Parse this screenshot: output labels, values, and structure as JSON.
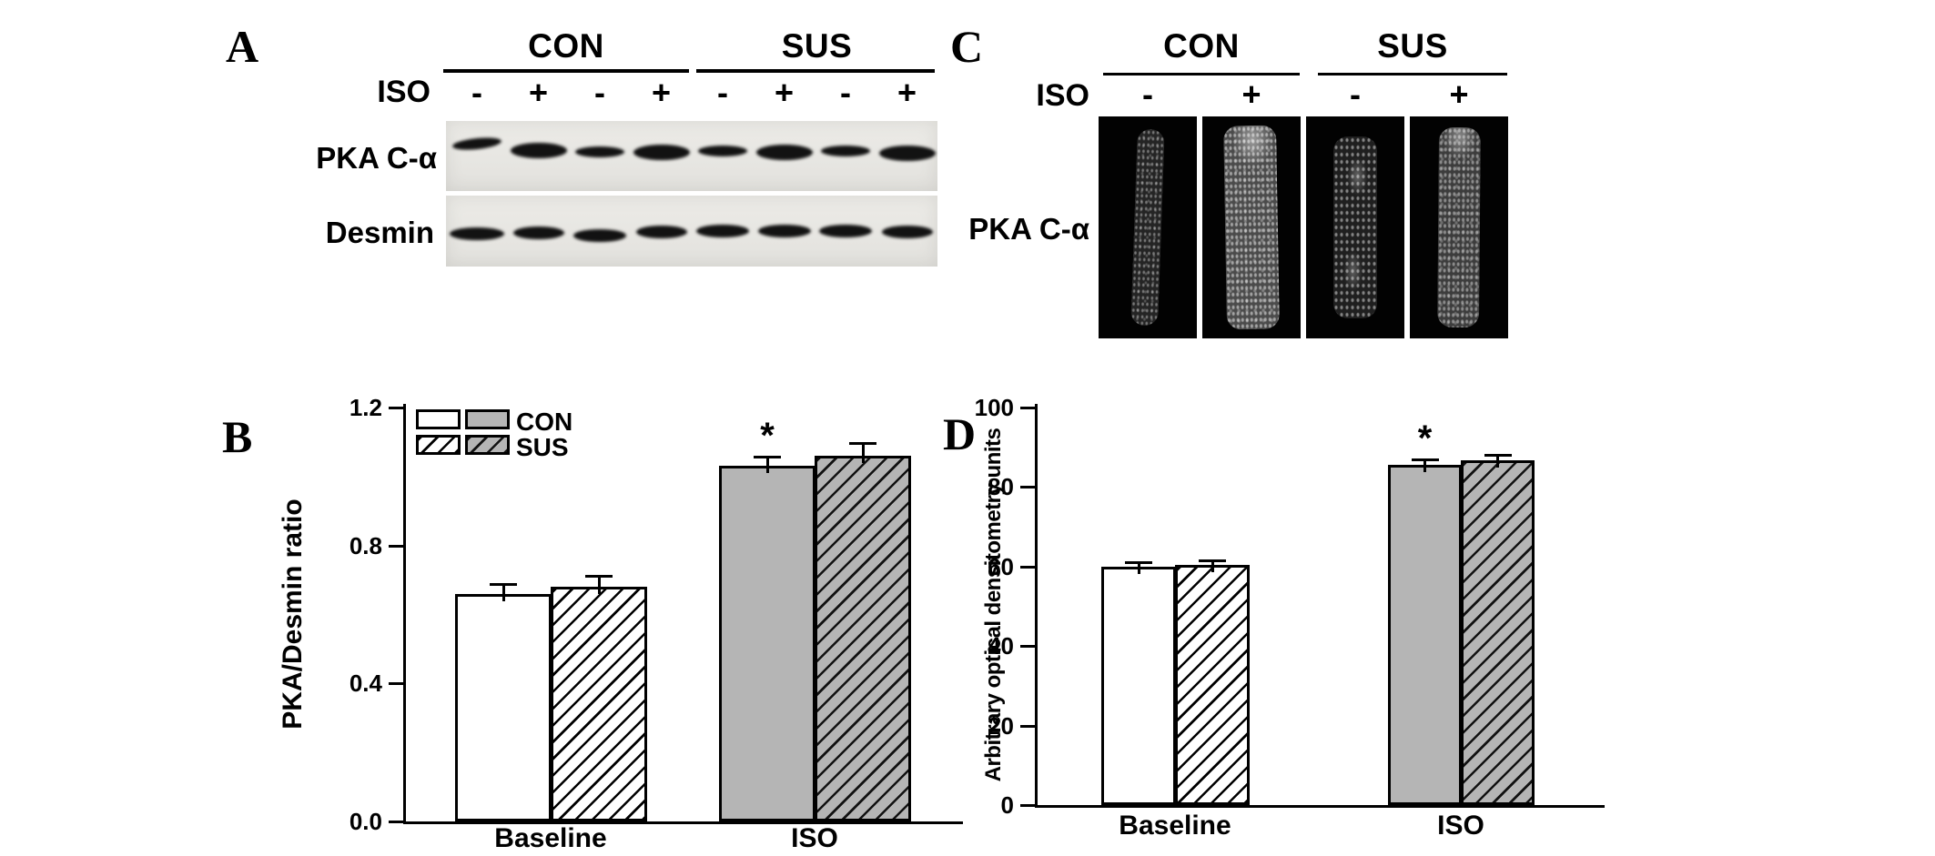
{
  "panel_a": {
    "label": "A",
    "groups": [
      "CON",
      "SUS"
    ],
    "iso_label": "ISO",
    "lanes": [
      "-",
      "+",
      "-",
      "+",
      "-",
      "+",
      "-",
      "+"
    ],
    "rows": [
      {
        "label": "PKA C-α"
      },
      {
        "label": "Desmin"
      }
    ]
  },
  "panel_b": {
    "label": "B"
  },
  "panel_c": {
    "label": "C",
    "groups": [
      "CON",
      "SUS"
    ],
    "iso_label": "ISO",
    "lanes": [
      "-",
      "+",
      "-",
      "+"
    ],
    "row_label": "PKA C-α"
  },
  "panel_d": {
    "label": "D"
  },
  "legend": {
    "con": "CON",
    "sus": "SUS"
  },
  "colors": {
    "gray_fill": "#b5b5b5",
    "blot_bg": "#e8e7e3",
    "band": "#121212",
    "accent": "#000000"
  },
  "chart_data": [
    {
      "id": "B",
      "type": "bar",
      "categories": [
        "Baseline",
        "ISO"
      ],
      "series": [
        {
          "name": "CON",
          "values": [
            0.66,
            1.03
          ],
          "errors": [
            0.03,
            0.03
          ]
        },
        {
          "name": "SUS",
          "values": [
            0.68,
            1.06
          ],
          "errors": [
            0.035,
            0.04
          ]
        }
      ],
      "title": "",
      "xlabel": "",
      "ylabel": "PKA/Desmin ratio",
      "ylim": [
        0,
        1.2
      ],
      "yticks": [
        0,
        0.4,
        0.8,
        1.2
      ],
      "ytick_labels": [
        "0.0",
        "0.4",
        "0.8",
        "1.2"
      ],
      "grid": false,
      "legend_position": "top-left",
      "sig_marker": {
        "text": "*",
        "category": "ISO",
        "series": "CON"
      }
    },
    {
      "id": "D",
      "type": "bar",
      "categories": [
        "Baseline",
        "ISO"
      ],
      "series": [
        {
          "name": "CON",
          "values": [
            60,
            85.5
          ],
          "errors": [
            1.4,
            1.7
          ]
        },
        {
          "name": "SUS",
          "values": [
            60.3,
            86.7
          ],
          "errors": [
            1.5,
            1.6
          ]
        }
      ],
      "title": "",
      "xlabel": "",
      "ylabel": "Arbitrary optical densitometry units",
      "ylim": [
        0,
        100
      ],
      "yticks": [
        0,
        20,
        40,
        60,
        80,
        100
      ],
      "ytick_labels": [
        "0",
        "20",
        "40",
        "60",
        "80",
        "100"
      ],
      "grid": false,
      "legend_position": "none",
      "sig_marker": {
        "text": "*",
        "category": "ISO",
        "series": "CON"
      }
    }
  ]
}
